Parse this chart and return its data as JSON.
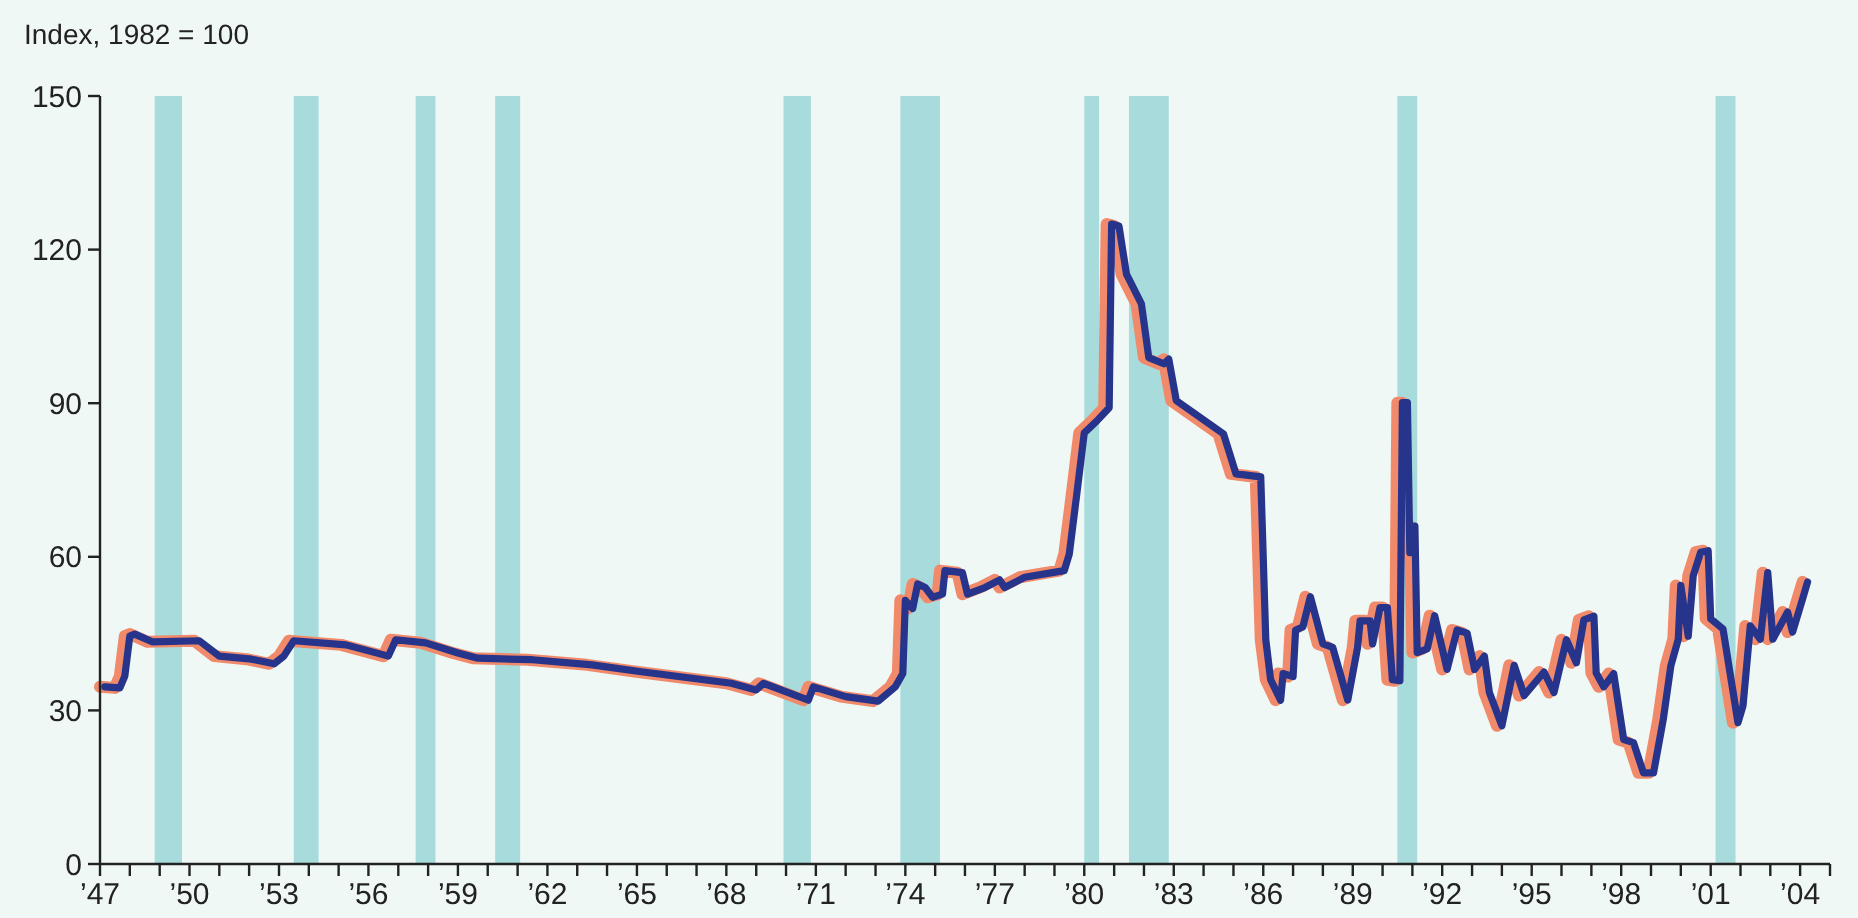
{
  "chart_data": {
    "type": "line",
    "ylabel": "Index, 1982 = 100",
    "xlim": [
      "1947-01-01",
      "2005-01-01"
    ],
    "ylim": [
      0,
      150
    ],
    "yticks": [
      0,
      30,
      60,
      90,
      120,
      150
    ],
    "xticks": [
      {
        "value": "1947",
        "label": "’47"
      },
      {
        "value": "1948",
        "label": null
      },
      {
        "value": "1949",
        "label": null
      },
      {
        "value": "1950",
        "label": "’50"
      },
      {
        "value": "1951",
        "label": null
      },
      {
        "value": "1952",
        "label": null
      },
      {
        "value": "1953",
        "label": "’53"
      },
      {
        "value": "1954",
        "label": null
      },
      {
        "value": "1955",
        "label": null
      },
      {
        "value": "1956",
        "label": "’56"
      },
      {
        "value": "1957",
        "label": null
      },
      {
        "value": "1958",
        "label": null
      },
      {
        "value": "1959",
        "label": "’59"
      },
      {
        "value": "1960",
        "label": null
      },
      {
        "value": "1961",
        "label": null
      },
      {
        "value": "1962",
        "label": "’62"
      },
      {
        "value": "1963",
        "label": null
      },
      {
        "value": "1964",
        "label": null
      },
      {
        "value": "1965",
        "label": "’65"
      },
      {
        "value": "1966",
        "label": null
      },
      {
        "value": "1967",
        "label": null
      },
      {
        "value": "1968",
        "label": "’68"
      },
      {
        "value": "1969",
        "label": null
      },
      {
        "value": "1970",
        "label": null
      },
      {
        "value": "1971",
        "label": "’71"
      },
      {
        "value": "1972",
        "label": null
      },
      {
        "value": "1973",
        "label": null
      },
      {
        "value": "1974",
        "label": "’74"
      },
      {
        "value": "1975",
        "label": null
      },
      {
        "value": "1976",
        "label": null
      },
      {
        "value": "1977",
        "label": "’77"
      },
      {
        "value": "1978",
        "label": null
      },
      {
        "value": "1979",
        "label": null
      },
      {
        "value": "1980",
        "label": "’80"
      },
      {
        "value": "1981",
        "label": null
      },
      {
        "value": "1982",
        "label": null
      },
      {
        "value": "1983",
        "label": "’83"
      },
      {
        "value": "1984",
        "label": null
      },
      {
        "value": "1985",
        "label": null
      },
      {
        "value": "1986",
        "label": "’86"
      },
      {
        "value": "1987",
        "label": null
      },
      {
        "value": "1988",
        "label": null
      },
      {
        "value": "1989",
        "label": "’89"
      },
      {
        "value": "1990",
        "label": null
      },
      {
        "value": "1991",
        "label": null
      },
      {
        "value": "1992",
        "label": "’92"
      },
      {
        "value": "1993",
        "label": null
      },
      {
        "value": "1994",
        "label": null
      },
      {
        "value": "1995",
        "label": "’95"
      },
      {
        "value": "1996",
        "label": null
      },
      {
        "value": "1997",
        "label": null
      },
      {
        "value": "1998",
        "label": "’98"
      },
      {
        "value": "1999",
        "label": null
      },
      {
        "value": "2000",
        "label": null
      },
      {
        "value": "2001",
        "label": "’01"
      },
      {
        "value": "2002",
        "label": null
      },
      {
        "value": "2003",
        "label": null
      },
      {
        "value": "2004",
        "label": "’04"
      },
      {
        "value": "2005",
        "label": null
      }
    ],
    "grid": false,
    "marker": "none",
    "line_style": "solid",
    "bands": [
      {
        "axis": "x",
        "from": "1948-11",
        "to": "1949-10",
        "color": "#a8dcdc"
      },
      {
        "axis": "x",
        "from": "1953-07",
        "to": "1954-05",
        "color": "#a8dcdc"
      },
      {
        "axis": "x",
        "from": "1957-08",
        "to": "1958-04",
        "color": "#a8dcdc"
      },
      {
        "axis": "x",
        "from": "1960-04",
        "to": "1961-02",
        "color": "#a8dcdc"
      },
      {
        "axis": "x",
        "from": "1969-12",
        "to": "1970-11",
        "color": "#a8dcdc"
      },
      {
        "axis": "x",
        "from": "1973-11",
        "to": "1975-03",
        "color": "#a8dcdc"
      },
      {
        "axis": "x",
        "from": "1980-01",
        "to": "1980-07",
        "color": "#a8dcdc"
      },
      {
        "axis": "x",
        "from": "1981-07",
        "to": "1982-11",
        "color": "#a8dcdc"
      },
      {
        "axis": "x",
        "from": "1990-07",
        "to": "1991-03",
        "color": "#a8dcdc"
      },
      {
        "axis": "x",
        "from": "2001-03",
        "to": "2001-11",
        "color": "#a8dcdc"
      }
    ],
    "series": [
      {
        "color": "#f08a6a",
        "x": [
          "1947-01",
          "1947-07",
          "1947-09",
          "1947-11",
          "1948-01",
          "1948-08",
          "1950-03",
          "1950-11",
          "1951-12",
          "1952-09",
          "1953-01",
          "1953-05",
          "1955-02",
          "1956-07",
          "1956-10",
          "1957-10",
          "1958-11",
          "1959-07",
          "1961-05",
          "1963-05",
          "1964-12",
          "1968-01",
          "1968-11",
          "1969-02",
          "1970-08",
          "1970-10",
          "1971-11",
          "1972-12",
          "1973-07",
          "1973-10",
          "1973-11",
          "1974-02",
          "1974-04",
          "1974-07",
          "1974-10",
          "1975-02",
          "1975-03",
          "1975-10",
          "1975-12",
          "1976-07",
          "1977-01",
          "1977-03",
          "1977-11",
          "1979-03",
          "1979-05",
          "1979-08",
          "1979-11",
          "1980-04",
          "1980-09",
          "1980-10",
          "1981-01",
          "1981-04",
          "1981-10",
          "1982-01",
          "1982-07",
          "1982-09",
          "1982-12",
          "1984-07",
          "1984-12",
          "1985-10",
          "1985-12",
          "1986-02",
          "1986-06",
          "1986-07",
          "1986-11",
          "1986-12",
          "1987-03",
          "1987-06",
          "1987-11",
          "1988-03",
          "1988-09",
          "1989-01",
          "1989-02",
          "1989-06",
          "1989-07",
          "1989-10",
          "1990-01",
          "1990-03",
          "1990-06",
          "1990-07",
          "1990-09",
          "1990-10",
          "1990-12",
          "1991-01",
          "1991-05",
          "1991-08",
          "1992-01",
          "1992-05",
          "1992-09",
          "1992-12",
          "1993-04",
          "1993-06",
          "1993-11",
          "1994-04",
          "1994-08",
          "1995-04",
          "1995-08",
          "1996-01",
          "1996-05",
          "1996-08",
          "1996-12",
          "1997-01",
          "1997-04",
          "1997-08",
          "1997-12",
          "1998-04",
          "1998-08",
          "1998-12",
          "1999-04",
          "1999-07",
          "1999-10",
          "1999-11",
          "2000-02",
          "2000-04",
          "2000-07",
          "2000-10",
          "2000-11",
          "2001-04",
          "2001-10",
          "2001-12",
          "2002-03",
          "2002-07",
          "2002-10",
          "2002-12",
          "2003-06",
          "2003-08",
          "2003-12",
          "2004-02"
        ],
        "values": [
          34.6,
          34.4,
          36.7,
          44.5,
          44.9,
          43.4,
          43.6,
          40.6,
          40.0,
          39.1,
          40.6,
          43.6,
          42.8,
          40.6,
          43.8,
          43.2,
          41.2,
          40.2,
          39.9,
          38.9,
          37.6,
          35.3,
          34.0,
          35.3,
          32.0,
          34.6,
          32.7,
          31.8,
          34.6,
          37.2,
          51.5,
          49.9,
          54.7,
          54.0,
          52.1,
          52.7,
          57.3,
          56.9,
          52.7,
          54.0,
          55.5,
          54.0,
          56.0,
          57.3,
          60.5,
          72.2,
          84.2,
          86.5,
          89.1,
          125,
          124.6,
          115.2,
          109.4,
          98.9,
          97.7,
          98.6,
          90.5,
          84.0,
          76.2,
          75.6,
          43.8,
          36.0,
          32.0,
          37.2,
          36.6,
          45.7,
          46.3,
          52.2,
          43.0,
          42.3,
          32.0,
          42.3,
          47.5,
          47.5,
          43.0,
          50.1,
          50.1,
          36.0,
          35.8,
          90.1,
          90.1,
          60.8,
          66.0,
          41.3,
          42.0,
          48.5,
          38.0,
          45.7,
          45.1,
          38.0,
          40.6,
          33.5,
          27.0,
          38.8,
          32.9,
          37.5,
          33.5,
          43.8,
          39.3,
          47.7,
          48.4,
          37.3,
          34.6,
          37.2,
          24.3,
          23.7,
          17.8,
          17.8,
          28.3,
          38.7,
          43.9,
          54.4,
          44.5,
          56.3,
          60.9,
          61.2,
          47.9,
          45.9,
          27.6,
          30.9,
          46.5,
          43.9,
          56.9,
          43.9,
          49.2,
          45.3,
          51.8,
          55.1
        ]
      },
      {
        "color": "#27348b",
        "x": [
          "1947-03",
          "1947-09",
          "1947-11",
          "1948-01",
          "1948-03",
          "1948-10",
          "1950-05",
          "1951-01",
          "1952-02",
          "1952-11",
          "1953-03",
          "1953-07",
          "1955-04",
          "1956-09",
          "1956-12",
          "1957-12",
          "1959-01",
          "1959-09",
          "1961-07",
          "1963-07",
          "1965-02",
          "1968-03",
          "1969-01",
          "1969-04",
          "1970-10",
          "1970-12",
          "1972-01",
          "1973-02",
          "1973-09",
          "1973-12",
          "1974-01",
          "1974-04",
          "1974-06",
          "1974-09",
          "1974-12",
          "1975-04",
          "1975-05",
          "1975-12",
          "1976-02",
          "1976-09",
          "1977-03",
          "1977-05",
          "1978-01",
          "1979-05",
          "1979-07",
          "1979-10",
          "1980-01",
          "1980-06",
          "1980-11",
          "1980-12",
          "1981-03",
          "1981-06",
          "1981-12",
          "1982-03",
          "1982-09",
          "1982-11",
          "1983-02",
          "1984-09",
          "1985-02",
          "1985-12",
          "1986-02",
          "1986-04",
          "1986-08",
          "1986-09",
          "1987-01",
          "1987-02",
          "1987-05",
          "1987-08",
          "1988-01",
          "1988-05",
          "1988-11",
          "1989-03",
          "1989-04",
          "1989-08",
          "1989-09",
          "1989-12",
          "1990-03",
          "1990-05",
          "1990-08",
          "1990-09",
          "1990-11",
          "1990-12",
          "1991-02",
          "1991-03",
          "1991-07",
          "1991-10",
          "1992-03",
          "1992-07",
          "1992-11",
          "1993-02",
          "1993-06",
          "1993-08",
          "1994-01",
          "1994-06",
          "1994-10",
          "1995-06",
          "1995-10",
          "1996-03",
          "1996-07",
          "1996-10",
          "1997-02",
          "1997-03",
          "1997-06",
          "1997-10",
          "1998-02",
          "1998-06",
          "1998-10",
          "1999-02",
          "1999-06",
          "1999-09",
          "1999-12",
          "2000-01",
          "2000-04",
          "2000-06",
          "2000-09",
          "2000-12",
          "2001-01",
          "2001-06",
          "2001-12",
          "2002-02",
          "2002-05",
          "2002-09",
          "2002-12",
          "2003-02",
          "2003-08",
          "2003-10",
          "2004-02",
          "2004-04"
        ],
        "values": [
          34.6,
          34.4,
          36.7,
          44.5,
          44.9,
          43.4,
          43.6,
          40.6,
          40.0,
          39.1,
          40.6,
          43.6,
          42.8,
          40.6,
          43.8,
          43.2,
          41.2,
          40.2,
          39.9,
          38.9,
          37.6,
          35.3,
          34.0,
          35.3,
          32.0,
          34.6,
          32.7,
          31.8,
          34.6,
          37.2,
          51.5,
          49.9,
          54.7,
          54.0,
          52.1,
          52.7,
          57.3,
          56.9,
          52.7,
          54.0,
          55.5,
          54.0,
          56.0,
          57.3,
          60.5,
          72.2,
          84.2,
          86.5,
          89.1,
          125,
          124.6,
          115.2,
          109.4,
          98.9,
          97.7,
          98.6,
          90.5,
          84.0,
          76.2,
          75.6,
          43.8,
          36.0,
          32.0,
          37.2,
          36.6,
          45.7,
          46.3,
          52.2,
          43.0,
          42.3,
          32.0,
          42.3,
          47.5,
          47.5,
          43.0,
          50.1,
          50.1,
          36.0,
          35.8,
          90.1,
          90.1,
          60.8,
          66.0,
          41.3,
          42.0,
          48.5,
          38.0,
          45.7,
          45.1,
          38.0,
          40.6,
          33.5,
          27.0,
          38.8,
          32.9,
          37.5,
          33.5,
          43.8,
          39.3,
          47.7,
          48.4,
          37.3,
          34.6,
          37.2,
          24.3,
          23.7,
          17.8,
          17.8,
          28.3,
          38.7,
          43.9,
          54.4,
          44.5,
          56.3,
          60.9,
          61.2,
          47.9,
          45.9,
          27.6,
          30.9,
          46.5,
          43.9,
          56.9,
          43.9,
          49.2,
          45.3,
          51.8,
          55.1
        ]
      }
    ]
  }
}
